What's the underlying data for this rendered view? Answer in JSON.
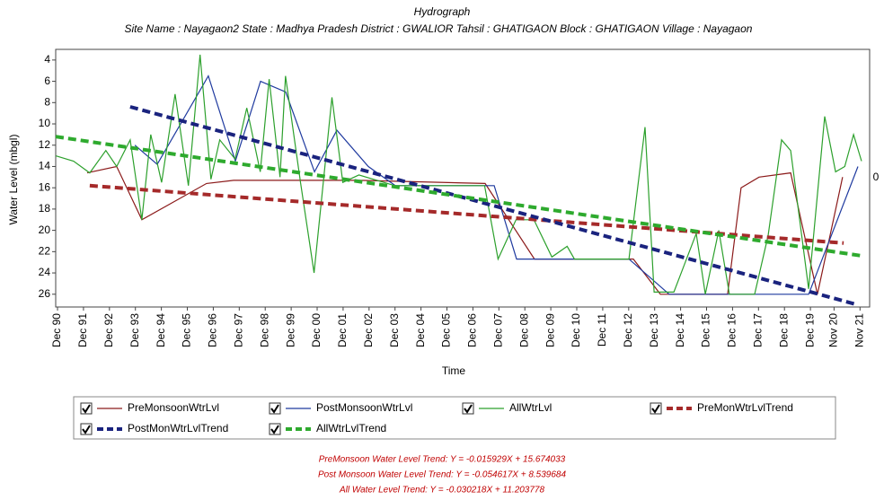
{
  "chart_data": {
    "type": "line",
    "title": "Hydrograph",
    "subtitle": "Site Name : Nayagaon2  State : Madhya Pradesh District : GWALIOR  Tahsil : GHATIGAON  Block : GHATIGAON Village : Nayagaon",
    "y_label": "Water Level (mbgl)",
    "x_label": "Time",
    "right_label": "0",
    "y_inverted": true,
    "ylim": [
      3,
      27.2
    ],
    "yticks": [
      4,
      6,
      8,
      10,
      12,
      14,
      16,
      18,
      20,
      22,
      24,
      26
    ],
    "xlim": [
      1990.85,
      2022.2
    ],
    "xticks": [
      {
        "value": 1990.92,
        "label": "Dec 90"
      },
      {
        "value": 1991.92,
        "label": "Dec 91"
      },
      {
        "value": 1992.92,
        "label": "Dec 92"
      },
      {
        "value": 1993.92,
        "label": "Dec 93"
      },
      {
        "value": 1994.92,
        "label": "Dec 94"
      },
      {
        "value": 1995.92,
        "label": "Dec 95"
      },
      {
        "value": 1996.92,
        "label": "Dec 96"
      },
      {
        "value": 1997.92,
        "label": "Dec 97"
      },
      {
        "value": 1998.92,
        "label": "Dec 98"
      },
      {
        "value": 1999.92,
        "label": "Dec 99"
      },
      {
        "value": 2000.92,
        "label": "Dec 00"
      },
      {
        "value": 2001.92,
        "label": "Dec 01"
      },
      {
        "value": 2002.92,
        "label": "Dec 02"
      },
      {
        "value": 2003.92,
        "label": "Dec 03"
      },
      {
        "value": 2004.92,
        "label": "Dec 04"
      },
      {
        "value": 2005.92,
        "label": "Dec 05"
      },
      {
        "value": 2006.92,
        "label": "Dec 06"
      },
      {
        "value": 2007.92,
        "label": "Dec 07"
      },
      {
        "value": 2008.92,
        "label": "Dec 08"
      },
      {
        "value": 2009.92,
        "label": "Dec 09"
      },
      {
        "value": 2010.92,
        "label": "Dec 10"
      },
      {
        "value": 2011.92,
        "label": "Dec 11"
      },
      {
        "value": 2012.92,
        "label": "Dec 12"
      },
      {
        "value": 2013.92,
        "label": "Dec 13"
      },
      {
        "value": 2014.92,
        "label": "Dec 14"
      },
      {
        "value": 2015.92,
        "label": "Dec 15"
      },
      {
        "value": 2016.92,
        "label": "Dec 16"
      },
      {
        "value": 2017.92,
        "label": "Dec 17"
      },
      {
        "value": 2018.92,
        "label": "Dec 18"
      },
      {
        "value": 2019.92,
        "label": "Dec 19"
      },
      {
        "value": 2020.83,
        "label": "Nov 20"
      },
      {
        "value": 2021.83,
        "label": "Nov 21"
      }
    ],
    "series": [
      {
        "name": "PreMonsoonWtrLvl",
        "color": "#8b1a1a",
        "dashed": false,
        "x": [
          1992.06,
          1993.2,
          1994.17,
          1996.66,
          1997.7,
          2002.55,
          2007.39,
          2009.29,
          2013.1,
          2014.14,
          2016.73,
          2017.25,
          2017.94,
          2019.16,
          2020.19,
          2021.16
        ],
        "values": [
          14.6,
          14.0,
          19.0,
          15.6,
          15.3,
          15.3,
          15.6,
          22.7,
          22.7,
          26.0,
          26.0,
          16.0,
          15.0,
          14.6,
          26.0,
          15.0
        ]
      },
      {
        "name": "PostMonsoonWtrLvl",
        "color": "#1f3a9f",
        "dashed": false,
        "x": [
          1993.9,
          1994.76,
          1996.73,
          1997.77,
          1998.74,
          1999.71,
          2000.82,
          2001.68,
          2002.89,
          2003.93,
          2007.74,
          2008.6,
          2012.93,
          2014.48,
          2019.85,
          2021.75
        ],
        "values": [
          12.0,
          13.8,
          5.5,
          13.5,
          6.0,
          7.0,
          14.5,
          10.6,
          14.0,
          15.8,
          15.8,
          22.7,
          22.7,
          26.0,
          26.0,
          14.0
        ]
      },
      {
        "name": "AllWtrLvl",
        "color": "#2ca02c",
        "dashed": false,
        "x": [
          1990.85,
          1991.54,
          1992.16,
          1992.78,
          1993.2,
          1993.72,
          1994.17,
          1994.51,
          1994.93,
          1995.45,
          1995.96,
          1996.41,
          1996.83,
          1997.17,
          1997.76,
          1998.21,
          1998.73,
          1999.07,
          1999.49,
          1999.7,
          2000.28,
          2000.8,
          2001.49,
          2001.91,
          2002.53,
          2003.91,
          2007.37,
          2007.89,
          2008.58,
          2009.27,
          2009.96,
          2010.55,
          2010.83,
          2012.93,
          2013.55,
          2013.9,
          2014.66,
          2015.52,
          2015.87,
          2016.39,
          2016.8,
          2017.77,
          2018.29,
          2018.81,
          2019.16,
          2019.85,
          2020.47,
          2020.89,
          2021.24,
          2021.58,
          2021.89
        ],
        "values": [
          13.0,
          13.5,
          14.6,
          12.5,
          14.0,
          11.5,
          19.0,
          11.0,
          15.5,
          7.2,
          15.8,
          3.5,
          15.2,
          11.5,
          13.3,
          8.5,
          14.5,
          5.8,
          15.0,
          5.5,
          15.5,
          24.0,
          7.5,
          15.5,
          14.8,
          15.8,
          15.8,
          22.7,
          19.0,
          19.0,
          22.5,
          21.5,
          22.7,
          22.7,
          10.3,
          25.8,
          25.8,
          20.3,
          26.0,
          20.0,
          26.0,
          26.0,
          20.5,
          11.5,
          12.5,
          25.5,
          9.3,
          14.5,
          14.0,
          11.0,
          13.5
        ]
      },
      {
        "name": "PreMonWtrLvlTrend",
        "color": "#a52a2a",
        "dashed": true,
        "x": [
          1992.16,
          2021.2
        ],
        "values": [
          15.8,
          21.2
        ]
      },
      {
        "name": "PostMonWtrLvlTrend",
        "color": "#1a237e",
        "dashed": true,
        "x": [
          1993.72,
          2021.75
        ],
        "values": [
          8.4,
          27.0
        ]
      },
      {
        "name": "AllWtrLvlTrend",
        "color": "#2eaa2e",
        "dashed": true,
        "x": [
          1990.85,
          2021.92
        ],
        "values": [
          11.2,
          22.4
        ]
      }
    ],
    "equations": [
      "PreMonsoon Water Level Trend: Y = -0.015929X + 15.674033",
      "Post Monsoon Water Level Trend: Y = -0.054617X + 8.539684",
      "All Water Level Trend: Y = -0.030218X + 11.203778"
    ]
  }
}
